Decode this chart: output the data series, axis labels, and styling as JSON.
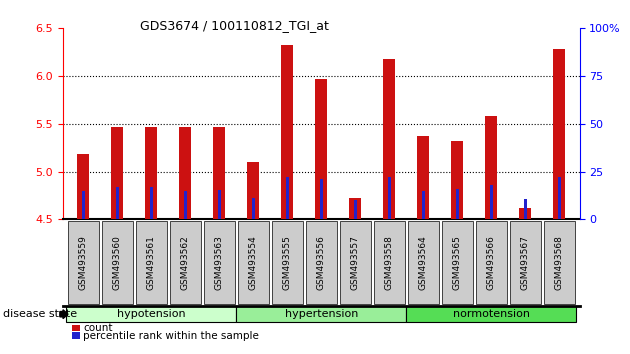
{
  "title": "GDS3674 / 100110812_TGI_at",
  "samples": [
    "GSM493559",
    "GSM493560",
    "GSM493561",
    "GSM493562",
    "GSM493563",
    "GSM493554",
    "GSM493555",
    "GSM493556",
    "GSM493557",
    "GSM493558",
    "GSM493564",
    "GSM493565",
    "GSM493566",
    "GSM493567",
    "GSM493568"
  ],
  "count_values": [
    5.18,
    5.47,
    5.47,
    5.47,
    5.47,
    5.1,
    6.33,
    5.97,
    4.72,
    6.18,
    5.37,
    5.32,
    5.58,
    4.62,
    6.28
  ],
  "percentile_values": [
    4.8,
    4.84,
    4.84,
    4.8,
    4.81,
    4.72,
    4.94,
    4.92,
    4.7,
    4.94,
    4.8,
    4.82,
    4.86,
    4.71,
    4.94
  ],
  "groups": [
    {
      "label": "hypotension",
      "start": 0,
      "end": 5,
      "color": "#ccffcc"
    },
    {
      "label": "hypertension",
      "start": 5,
      "end": 10,
      "color": "#99ee99"
    },
    {
      "label": "normotension",
      "start": 10,
      "end": 15,
      "color": "#55dd55"
    }
  ],
  "ylim_left": [
    4.5,
    6.5
  ],
  "ylim_right": [
    0,
    100
  ],
  "yticks_left": [
    4.5,
    5.0,
    5.5,
    6.0,
    6.5
  ],
  "yticks_right": [
    0,
    25,
    50,
    75,
    100
  ],
  "bar_color": "#cc1111",
  "percentile_color": "#2222cc",
  "bar_bottom": 4.5,
  "grid_values": [
    5.0,
    5.5,
    6.0
  ],
  "label_count": "count",
  "label_percentile": "percentile rank within the sample",
  "disease_state_label": "disease state"
}
